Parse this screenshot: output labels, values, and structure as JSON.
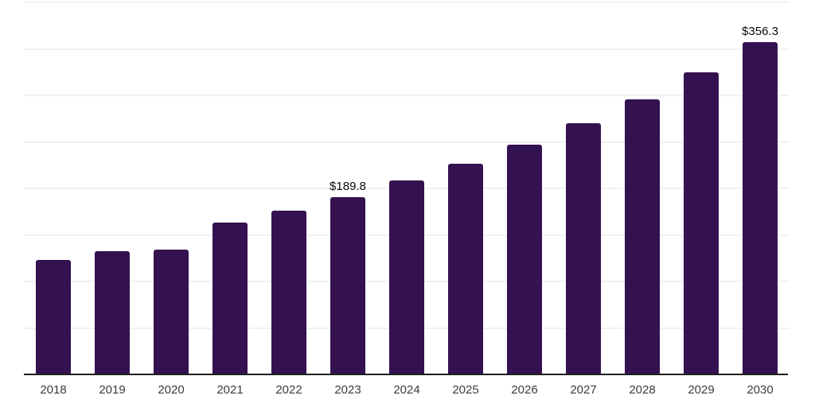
{
  "chart_data": {
    "type": "bar",
    "title": "",
    "xlabel": "",
    "ylabel": "",
    "categories": [
      "2018",
      "2019",
      "2020",
      "2021",
      "2022",
      "2023",
      "2024",
      "2025",
      "2026",
      "2027",
      "2028",
      "2029",
      "2030"
    ],
    "values": [
      122.3,
      131.6,
      133.3,
      162.4,
      175.2,
      189.8,
      207.7,
      225.6,
      246.2,
      269.2,
      294.9,
      323.9,
      356.3
    ],
    "value_labels": {
      "2023": "$189.8",
      "2030": "$356.3"
    },
    "ylim": [
      0,
      400
    ],
    "gridline_interval": 50,
    "grid": "horizontal",
    "y_tick_labels_visible": false,
    "legend": "none"
  },
  "theme": {
    "bar_color": "#341150",
    "background_color": "#ffffff",
    "gridline_color": "#f1f1f4",
    "axis_line_color": "#1f1f1f",
    "tick_label_color": "#3b3b3b",
    "value_label_color": "#0a0a0a"
  }
}
